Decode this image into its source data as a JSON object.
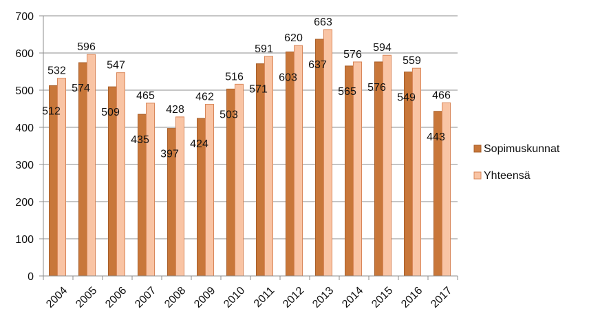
{
  "chart_data": {
    "type": "bar",
    "title": "",
    "xlabel": "",
    "ylabel": "",
    "categories": [
      "2004",
      "2005",
      "2006",
      "2007",
      "2008",
      "2009",
      "2010",
      "2011",
      "2012",
      "2013",
      "2014",
      "2015",
      "2016",
      "2017"
    ],
    "series": [
      {
        "name": "Sopimuskunnat",
        "color": "#C8773A",
        "values": [
          512,
          574,
          509,
          435,
          397,
          424,
          503,
          571,
          603,
          637,
          565,
          576,
          549,
          443
        ]
      },
      {
        "name": "Yhteensä",
        "color": "#F9C4A4",
        "values": [
          532,
          596,
          547,
          465,
          428,
          462,
          516,
          591,
          620,
          663,
          576,
          594,
          559,
          466
        ]
      }
    ],
    "ylim": [
      0,
      700
    ],
    "yticks": [
      0,
      100,
      200,
      300,
      400,
      500,
      600,
      700
    ],
    "grid": true,
    "legend_position": "right"
  }
}
